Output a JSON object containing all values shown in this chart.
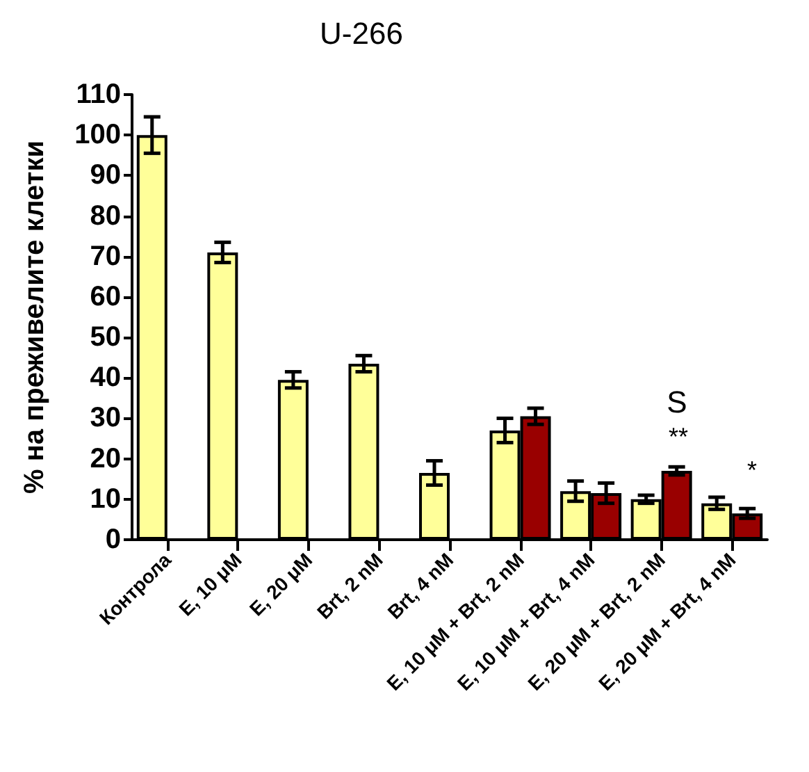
{
  "chart_data": {
    "type": "bar",
    "title": "U-266",
    "ylabel": "% на преживелите клетки",
    "categories": [
      "Контрола",
      "E, 10 μM",
      "E, 20 μM",
      "Brt, 2 nM",
      "Brt, 4 nM",
      "E, 10 μM + Brt, 2 nM",
      "E, 10 μM + Brt, 4 nM",
      "E, 20 μM + Brt, 2 nM",
      "E, 20 μM + Brt, 4 nM"
    ],
    "series": [
      {
        "color": "#ffff99",
        "values": [
          100,
          71,
          39.5,
          43.5,
          16.5,
          27,
          12,
          10,
          9
        ],
        "errors": [
          4.5,
          2.5,
          2,
          2,
          3,
          3,
          2.5,
          1,
          1.5
        ]
      },
      {
        "color": "#990000",
        "values": [
          null,
          null,
          null,
          null,
          null,
          30.5,
          11.5,
          17,
          6.5
        ],
        "errors": [
          null,
          null,
          null,
          null,
          null,
          2,
          2.5,
          1,
          1.2
        ]
      }
    ],
    "ylim": [
      0,
      110
    ],
    "yticks": [
      0,
      10,
      20,
      30,
      40,
      50,
      60,
      70,
      80,
      90,
      100,
      110
    ],
    "grid": false,
    "annotations": [
      "S",
      "**",
      "*"
    ]
  }
}
